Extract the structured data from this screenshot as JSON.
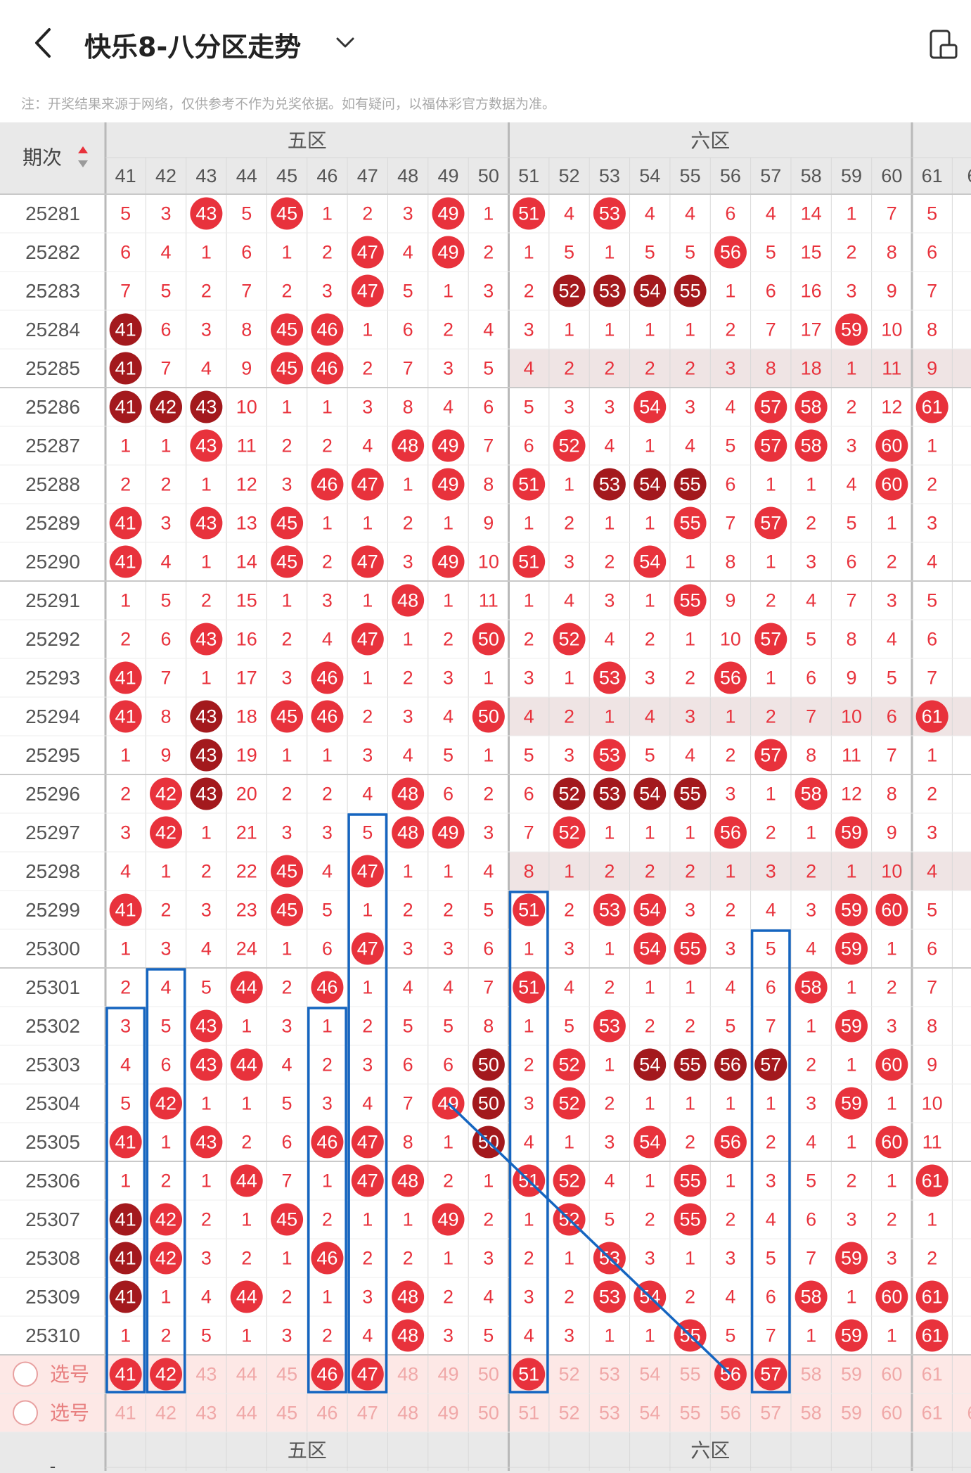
{
  "header": {
    "title": "快乐8-八分区走势",
    "notice": "注：开奖结果来源于网络，仅供参考不作为兑奖依据。如有疑问，以福体彩官方数据为准。"
  },
  "icons": {
    "back": "chevron-left-icon",
    "title_dropdown": "chevron-down-icon",
    "top_right": "device-layout-icon",
    "sort": "sort-arrows-icon",
    "select": "radio-circle-icon"
  },
  "colors": {
    "hit_red": "#e8323c",
    "hit_dark": "#a3191d",
    "miss_text": "#e8323c",
    "header_bg": "#e9e9e9",
    "footer_bg": "#fde8e6",
    "highlight_row": "#efe4e4",
    "annotation_blue": "#1565c0"
  },
  "table": {
    "period_header": "期次",
    "zones": [
      "五区",
      "六区"
    ],
    "columns": [
      "41",
      "42",
      "43",
      "44",
      "45",
      "46",
      "47",
      "48",
      "49",
      "50",
      "51",
      "52",
      "53",
      "54",
      "55",
      "56",
      "57",
      "58",
      "59",
      "60",
      "61",
      "6"
    ],
    "rows": [
      {
        "period": "25281",
        "cells": [
          "5",
          "3",
          "43",
          "5",
          "45",
          "1",
          "2",
          "3",
          "49",
          "1",
          "51",
          "4",
          "53",
          "4",
          "4",
          "6",
          "4",
          "14",
          "1",
          "7",
          "5",
          ""
        ],
        "hits": "0010100010101000000000",
        "dark": "0000000000000000000000"
      },
      {
        "period": "25282",
        "cells": [
          "6",
          "4",
          "1",
          "6",
          "1",
          "2",
          "47",
          "4",
          "49",
          "2",
          "1",
          "5",
          "1",
          "5",
          "5",
          "56",
          "5",
          "15",
          "2",
          "8",
          "6",
          ""
        ],
        "hits": "0000001010000001000001",
        "dark": "0000000000000000000000"
      },
      {
        "period": "25283",
        "cells": [
          "7",
          "5",
          "2",
          "7",
          "2",
          "3",
          "47",
          "5",
          "1",
          "3",
          "2",
          "52",
          "53",
          "54",
          "55",
          "1",
          "6",
          "16",
          "3",
          "9",
          "7",
          ""
        ],
        "hits": "0000001000011110000000",
        "dark": "0000000000011110000000"
      },
      {
        "period": "25284",
        "cells": [
          "41",
          "6",
          "3",
          "8",
          "45",
          "46",
          "1",
          "6",
          "2",
          "4",
          "3",
          "1",
          "1",
          "1",
          "1",
          "2",
          "7",
          "17",
          "59",
          "10",
          "8",
          ""
        ],
        "hits": "1000110000000000001000",
        "dark": "1000000000000000000000"
      },
      {
        "period": "25285",
        "cells": [
          "41",
          "7",
          "4",
          "9",
          "45",
          "46",
          "2",
          "7",
          "3",
          "5",
          "4",
          "2",
          "2",
          "2",
          "2",
          "3",
          "8",
          "18",
          "1",
          "11",
          "9",
          ""
        ],
        "hits": "1000110000000000000000",
        "dark": "1000000000000000000000"
      },
      {
        "period": "25286",
        "cells": [
          "41",
          "42",
          "43",
          "10",
          "1",
          "1",
          "3",
          "8",
          "4",
          "6",
          "5",
          "3",
          "3",
          "54",
          "3",
          "4",
          "57",
          "58",
          "2",
          "12",
          "61",
          ""
        ],
        "hits": "1110000000000100110011",
        "dark": "1110000000000000000000"
      },
      {
        "period": "25287",
        "cells": [
          "1",
          "1",
          "43",
          "11",
          "2",
          "2",
          "4",
          "48",
          "49",
          "7",
          "6",
          "52",
          "4",
          "1",
          "4",
          "5",
          "57",
          "58",
          "3",
          "60",
          "1",
          ""
        ],
        "hits": "0010000110010000110100",
        "dark": "0000000000000000000000"
      },
      {
        "period": "25288",
        "cells": [
          "2",
          "2",
          "1",
          "12",
          "3",
          "46",
          "47",
          "1",
          "49",
          "8",
          "51",
          "1",
          "53",
          "54",
          "55",
          "6",
          "1",
          "1",
          "4",
          "60",
          "2",
          ""
        ],
        "hits": "0000011010101110000100",
        "dark": "0000000000001110000000"
      },
      {
        "period": "25289",
        "cells": [
          "41",
          "3",
          "43",
          "13",
          "45",
          "1",
          "1",
          "2",
          "1",
          "9",
          "1",
          "2",
          "1",
          "1",
          "55",
          "7",
          "57",
          "2",
          "5",
          "1",
          "3",
          ""
        ],
        "hits": "1010100000000010100000",
        "dark": "0000000000000000000000"
      },
      {
        "period": "25290",
        "cells": [
          "41",
          "4",
          "1",
          "14",
          "45",
          "2",
          "47",
          "3",
          "49",
          "10",
          "51",
          "3",
          "2",
          "54",
          "1",
          "8",
          "1",
          "3",
          "6",
          "2",
          "4",
          ""
        ],
        "hits": "1000101010100100000000",
        "dark": "0000000000000000000000"
      },
      {
        "period": "25291",
        "cells": [
          "1",
          "5",
          "2",
          "15",
          "1",
          "3",
          "1",
          "48",
          "1",
          "11",
          "1",
          "4",
          "3",
          "1",
          "55",
          "9",
          "2",
          "4",
          "7",
          "3",
          "5",
          ""
        ],
        "hits": "0000000100000010000000",
        "dark": "0000000000000000000000"
      },
      {
        "period": "25292",
        "cells": [
          "2",
          "6",
          "43",
          "16",
          "2",
          "4",
          "47",
          "1",
          "2",
          "50",
          "2",
          "52",
          "4",
          "2",
          "1",
          "10",
          "57",
          "5",
          "8",
          "4",
          "6",
          ""
        ],
        "hits": "0010001001010000100001",
        "dark": "0000000000000000000000"
      },
      {
        "period": "25293",
        "cells": [
          "41",
          "7",
          "1",
          "17",
          "3",
          "46",
          "1",
          "2",
          "3",
          "1",
          "3",
          "1",
          "53",
          "3",
          "2",
          "56",
          "1",
          "6",
          "9",
          "5",
          "7",
          ""
        ],
        "hits": "1000010000001001000000",
        "dark": "0000000000000000000000"
      },
      {
        "period": "25294",
        "cells": [
          "41",
          "8",
          "43",
          "18",
          "45",
          "46",
          "2",
          "3",
          "4",
          "50",
          "4",
          "2",
          "1",
          "4",
          "3",
          "1",
          "2",
          "7",
          "10",
          "6",
          "61",
          ""
        ],
        "hits": "1010110001000000000011",
        "dark": "0010000000000000000000"
      },
      {
        "period": "25295",
        "cells": [
          "1",
          "9",
          "43",
          "19",
          "1",
          "1",
          "3",
          "4",
          "5",
          "1",
          "5",
          "3",
          "53",
          "5",
          "4",
          "2",
          "57",
          "8",
          "11",
          "7",
          "1",
          ""
        ],
        "hits": "0010000000001000100000",
        "dark": "0010000000000000000000"
      },
      {
        "period": "25296",
        "cells": [
          "2",
          "42",
          "43",
          "20",
          "2",
          "2",
          "4",
          "48",
          "6",
          "2",
          "6",
          "52",
          "53",
          "54",
          "55",
          "3",
          "1",
          "58",
          "12",
          "8",
          "2",
          ""
        ],
        "hits": "0110000100011110010000",
        "dark": "0010000000011110000000"
      },
      {
        "period": "25297",
        "cells": [
          "3",
          "42",
          "1",
          "21",
          "3",
          "3",
          "5",
          "48",
          "49",
          "3",
          "7",
          "52",
          "1",
          "1",
          "1",
          "56",
          "2",
          "1",
          "59",
          "9",
          "3",
          ""
        ],
        "hits": "0100000110010001001000",
        "dark": "0000000000000000000000"
      },
      {
        "period": "25298",
        "cells": [
          "4",
          "1",
          "2",
          "22",
          "45",
          "4",
          "47",
          "1",
          "1",
          "4",
          "8",
          "1",
          "2",
          "2",
          "2",
          "1",
          "3",
          "2",
          "1",
          "10",
          "4",
          ""
        ],
        "hits": "0000101000000000000000",
        "dark": "0000000000000000000000"
      },
      {
        "period": "25299",
        "cells": [
          "41",
          "2",
          "3",
          "23",
          "45",
          "5",
          "1",
          "2",
          "2",
          "5",
          "51",
          "2",
          "53",
          "54",
          "3",
          "2",
          "4",
          "3",
          "59",
          "60",
          "5",
          ""
        ],
        "hits": "1000100000101100001100",
        "dark": "0000000000000000000000"
      },
      {
        "period": "25300",
        "cells": [
          "1",
          "3",
          "4",
          "24",
          "1",
          "6",
          "47",
          "3",
          "3",
          "6",
          "1",
          "3",
          "1",
          "54",
          "55",
          "3",
          "5",
          "4",
          "59",
          "1",
          "6",
          ""
        ],
        "hits": "0000001000000110001000",
        "dark": "0000000000000000000000"
      },
      {
        "period": "25301",
        "cells": [
          "2",
          "4",
          "5",
          "44",
          "2",
          "46",
          "1",
          "4",
          "4",
          "7",
          "51",
          "4",
          "2",
          "1",
          "1",
          "4",
          "6",
          "58",
          "1",
          "2",
          "7",
          ""
        ],
        "hits": "0001010000100000010001",
        "dark": "0000000000000000000001"
      },
      {
        "period": "25302",
        "cells": [
          "3",
          "5",
          "43",
          "1",
          "3",
          "1",
          "2",
          "5",
          "5",
          "8",
          "1",
          "5",
          "53",
          "2",
          "2",
          "5",
          "7",
          "1",
          "59",
          "3",
          "8",
          ""
        ],
        "hits": "0010000000001000001001",
        "dark": "0000000000000000000001"
      },
      {
        "period": "25303",
        "cells": [
          "4",
          "6",
          "43",
          "44",
          "4",
          "2",
          "3",
          "6",
          "6",
          "50",
          "2",
          "52",
          "1",
          "54",
          "55",
          "56",
          "57",
          "2",
          "1",
          "60",
          "9",
          ""
        ],
        "hits": "0011000001010111100101",
        "dark": "0000000001000111100001"
      },
      {
        "period": "25304",
        "cells": [
          "5",
          "42",
          "1",
          "1",
          "5",
          "3",
          "4",
          "7",
          "49",
          "50",
          "3",
          "52",
          "2",
          "1",
          "1",
          "1",
          "1",
          "3",
          "59",
          "1",
          "10",
          ""
        ],
        "hits": "0100000011010000001000",
        "dark": "0000000001000000000000"
      },
      {
        "period": "25305",
        "cells": [
          "41",
          "1",
          "43",
          "2",
          "6",
          "46",
          "47",
          "8",
          "1",
          "50",
          "4",
          "1",
          "3",
          "54",
          "2",
          "56",
          "2",
          "4",
          "1",
          "60",
          "11",
          ""
        ],
        "hits": "1010011001000101000100",
        "dark": "0000000001000000000000"
      },
      {
        "period": "25306",
        "cells": [
          "1",
          "2",
          "1",
          "44",
          "7",
          "1",
          "47",
          "48",
          "2",
          "1",
          "51",
          "52",
          "4",
          "1",
          "55",
          "1",
          "3",
          "5",
          "2",
          "1",
          "61",
          ""
        ],
        "hits": "0001001100110010000010",
        "dark": "0000000000000000000000"
      },
      {
        "period": "25307",
        "cells": [
          "41",
          "42",
          "2",
          "1",
          "45",
          "2",
          "1",
          "1",
          "49",
          "2",
          "1",
          "52",
          "5",
          "2",
          "55",
          "2",
          "4",
          "6",
          "3",
          "2",
          "1",
          ""
        ],
        "hits": "1100100010010010000000",
        "dark": "1000000000000000000000"
      },
      {
        "period": "25308",
        "cells": [
          "41",
          "42",
          "3",
          "2",
          "1",
          "46",
          "2",
          "2",
          "1",
          "3",
          "2",
          "1",
          "53",
          "3",
          "1",
          "3",
          "5",
          "7",
          "59",
          "3",
          "2",
          ""
        ],
        "hits": "1100010000001000001001",
        "dark": "1000000000000000000000"
      },
      {
        "period": "25309",
        "cells": [
          "41",
          "1",
          "4",
          "44",
          "2",
          "1",
          "3",
          "48",
          "2",
          "4",
          "3",
          "2",
          "53",
          "54",
          "2",
          "4",
          "6",
          "58",
          "1",
          "60",
          "61",
          ""
        ],
        "hits": "1001000100001100010110",
        "dark": "1000000000000000000000"
      },
      {
        "period": "25310",
        "cells": [
          "1",
          "2",
          "5",
          "1",
          "3",
          "2",
          "4",
          "48",
          "3",
          "5",
          "4",
          "3",
          "1",
          "1",
          "55",
          "5",
          "7",
          "1",
          "59",
          "1",
          "61",
          ""
        ],
        "hits": "0000000100000010001010",
        "dark": "0000000000000000000000"
      }
    ],
    "highlight_rows": [
      {
        "row": 4,
        "from_col": 10
      },
      {
        "row": 13,
        "from_col": 10
      },
      {
        "row": 17,
        "from_col": 10
      }
    ],
    "select_rows": [
      {
        "label": "选号",
        "cells": [
          "41",
          "42",
          "43",
          "44",
          "45",
          "46",
          "47",
          "48",
          "49",
          "50",
          "51",
          "52",
          "53",
          "54",
          "55",
          "56",
          "57",
          "58",
          "59",
          "60",
          "61",
          ""
        ],
        "selected": "1100011000100001100000"
      },
      {
        "label": "选号",
        "cells": [
          "41",
          "42",
          "43",
          "44",
          "45",
          "46",
          "47",
          "48",
          "49",
          "50",
          "51",
          "52",
          "53",
          "54",
          "55",
          "56",
          "57",
          "58",
          "59",
          "60",
          "61",
          "6"
        ],
        "selected": "0000000000000000000000"
      }
    ],
    "footer_period": "-"
  }
}
